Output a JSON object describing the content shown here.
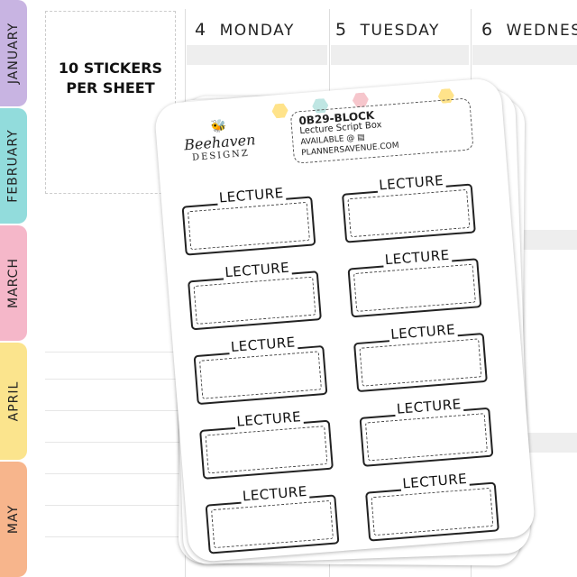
{
  "tabs": [
    {
      "label": "JANUARY",
      "color": "#c8b4e2"
    },
    {
      "label": "FEBRUARY",
      "color": "#92dcdc"
    },
    {
      "label": "MARCH",
      "color": "#f5b7c9"
    },
    {
      "label": "APRIL",
      "color": "#fbe48d"
    },
    {
      "label": "MAY",
      "color": "#f7b58c"
    }
  ],
  "info_box": {
    "line1": "10 STICKERS",
    "line2": "PER SHEET"
  },
  "days": [
    {
      "num": "4",
      "name": "MONDAY"
    },
    {
      "num": "5",
      "name": "TUESDAY"
    },
    {
      "num": "6",
      "name": "WEDNES"
    }
  ],
  "sheet": {
    "brand": "Beehaven",
    "brand_sub": "DESIGNZ",
    "code": "0B29-BLOCK",
    "title": "Lecture Script Box",
    "available": "AVAILABLE @ ▤ PLANNERSAVENUE.COM",
    "sticker_label": "LECTURE"
  }
}
